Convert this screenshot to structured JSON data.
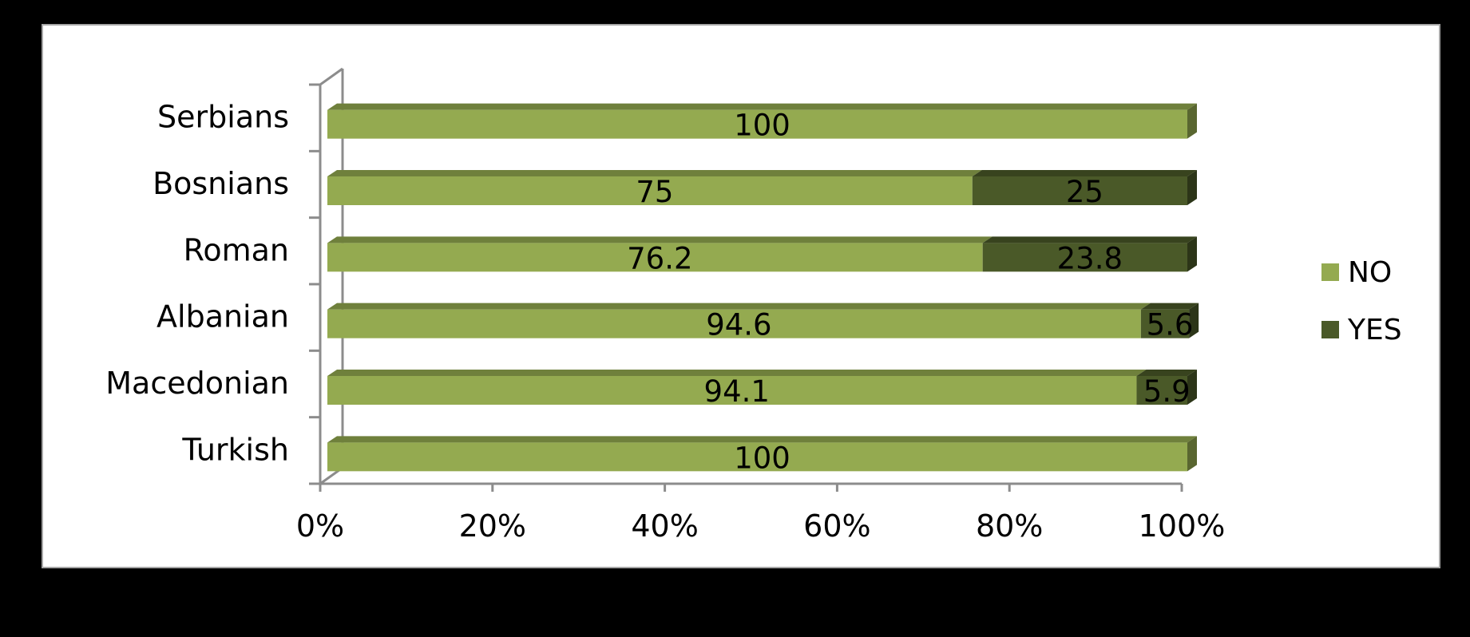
{
  "chart_data": {
    "type": "bar",
    "orientation": "horizontal",
    "stacked": "100%",
    "categories": [
      "Serbians",
      "Bosnians",
      "Roman",
      "Albanian",
      "Macedonian",
      "Turkish"
    ],
    "series": [
      {
        "name": "NO",
        "values": [
          100,
          75,
          76.2,
          94.6,
          94.1,
          100
        ],
        "labels": [
          "100",
          "75",
          "76.2",
          "94.6",
          "94.1",
          "100"
        ],
        "color": "#94aa50"
      },
      {
        "name": "YES",
        "values": [
          0,
          25,
          23.8,
          5.6,
          5.9,
          0
        ],
        "labels": [
          "",
          "25",
          "23.8",
          "5.6",
          "5.9",
          ""
        ],
        "color": "#4a5928"
      }
    ],
    "x_ticks": [
      "0%",
      "20%",
      "40%",
      "60%",
      "80%",
      "100%"
    ],
    "xlim": [
      0,
      100
    ],
    "legend_position": "right",
    "grid": false
  }
}
